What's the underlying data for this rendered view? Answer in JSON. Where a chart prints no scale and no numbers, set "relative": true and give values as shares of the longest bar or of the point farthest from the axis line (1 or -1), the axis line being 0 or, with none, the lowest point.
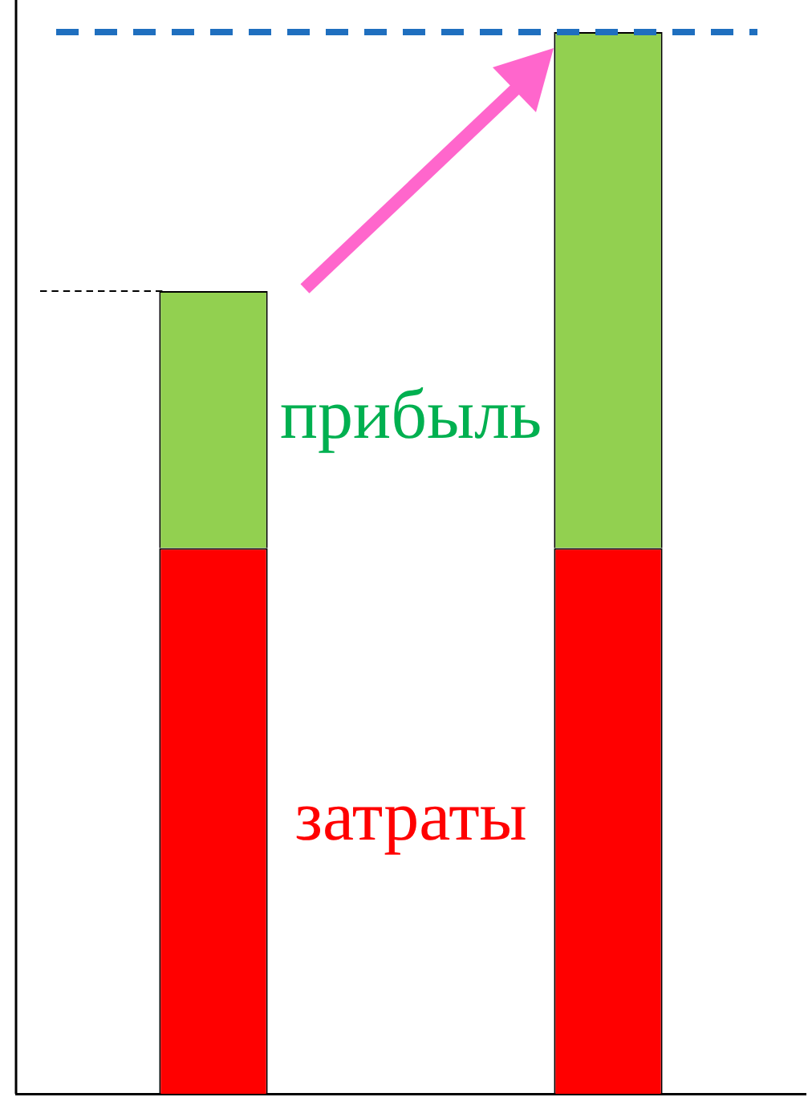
{
  "chart_data": {
    "type": "bar",
    "stacked": true,
    "relative": true,
    "categories": [
      null,
      null
    ],
    "series": [
      {
        "name": "затраты",
        "color": "#ff0000",
        "values": [
          0.514,
          0.514
        ]
      },
      {
        "name": "прибыль",
        "color": "#92d050",
        "values": [
          0.242,
          0.486
        ]
      }
    ],
    "ref_lines": [
      {
        "axis": "y",
        "value": 1,
        "color": "#1f6fbf",
        "line_style": "dashed"
      },
      {
        "axis": "y",
        "value": 0.756,
        "color": "#000000",
        "line_style": "dashed"
      }
    ],
    "grid": false,
    "legend": false
  }
}
